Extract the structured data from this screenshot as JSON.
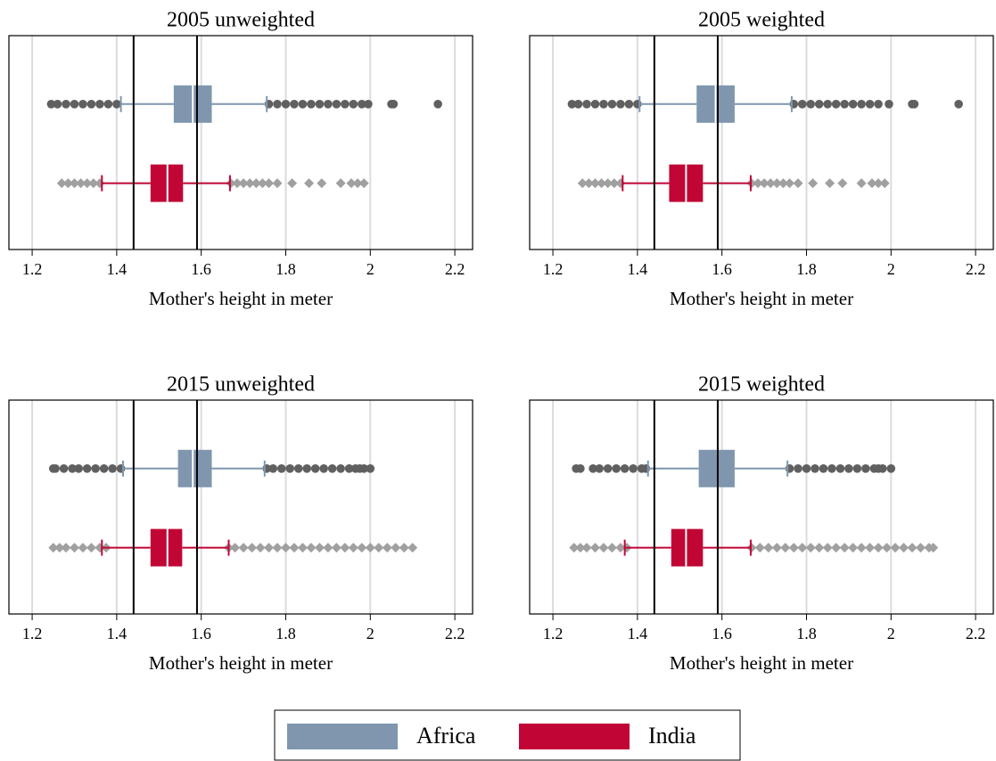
{
  "chart_data": [
    {
      "type": "box",
      "title": "2005 unweighted",
      "xlabel": "Mother's height in meter",
      "xlim": [
        1.145,
        2.242
      ],
      "xticks": [
        1.2,
        1.4,
        1.6,
        1.8,
        2,
        2.2
      ],
      "grid": true,
      "vlines": [
        1.44,
        1.59
      ],
      "series": [
        {
          "name": "Africa",
          "color": "#7f96ae",
          "outlier_color": "#606060",
          "outlier_marker": "circle",
          "whisker_low": 1.41,
          "q1": 1.535,
          "median": 1.58,
          "q3": 1.625,
          "whisker_high": 1.755,
          "outliers": [
            1.245,
            1.26,
            1.28,
            1.3,
            1.32,
            1.34,
            1.36,
            1.38,
            1.4,
            1.76,
            1.78,
            1.8,
            1.82,
            1.84,
            1.86,
            1.88,
            1.9,
            1.92,
            1.94,
            1.96,
            1.98,
            1.995,
            2.05,
            2.055,
            2.16
          ]
        },
        {
          "name": "India",
          "color": "#c10534",
          "outlier_color": "#a0a0a0",
          "outlier_marker": "diamond",
          "whisker_low": 1.365,
          "q1": 1.48,
          "median": 1.52,
          "q3": 1.557,
          "whisker_high": 1.668,
          "outliers": [
            1.27,
            1.285,
            1.3,
            1.315,
            1.33,
            1.345,
            1.36,
            1.67,
            1.685,
            1.7,
            1.715,
            1.73,
            1.745,
            1.76,
            1.78,
            1.815,
            1.855,
            1.885,
            1.93,
            1.955,
            1.97,
            1.985
          ]
        }
      ]
    },
    {
      "type": "box",
      "title": "2005 weighted",
      "xlabel": "Mother's height in meter",
      "xlim": [
        1.145,
        2.242
      ],
      "xticks": [
        1.2,
        1.4,
        1.6,
        1.8,
        2,
        2.2
      ],
      "grid": true,
      "vlines": [
        1.44,
        1.59
      ],
      "series": [
        {
          "name": "Africa",
          "color": "#7f96ae",
          "outlier_color": "#606060",
          "outlier_marker": "circle",
          "whisker_low": 1.405,
          "q1": 1.54,
          "median": 1.585,
          "q3": 1.63,
          "whisker_high": 1.765,
          "outliers": [
            1.245,
            1.26,
            1.28,
            1.3,
            1.32,
            1.34,
            1.36,
            1.38,
            1.4,
            1.77,
            1.79,
            1.81,
            1.83,
            1.85,
            1.87,
            1.89,
            1.91,
            1.93,
            1.95,
            1.97,
            1.995,
            2.05,
            2.055,
            2.16
          ]
        },
        {
          "name": "India",
          "color": "#c10534",
          "outlier_color": "#a0a0a0",
          "outlier_marker": "diamond",
          "whisker_low": 1.365,
          "q1": 1.475,
          "median": 1.515,
          "q3": 1.555,
          "whisker_high": 1.668,
          "outliers": [
            1.27,
            1.285,
            1.3,
            1.315,
            1.33,
            1.345,
            1.36,
            1.67,
            1.685,
            1.7,
            1.715,
            1.73,
            1.745,
            1.76,
            1.78,
            1.815,
            1.855,
            1.885,
            1.93,
            1.955,
            1.97,
            1.985
          ]
        }
      ]
    },
    {
      "type": "box",
      "title": "2015 unweighted",
      "xlabel": "Mother's height in meter",
      "xlim": [
        1.145,
        2.242
      ],
      "xticks": [
        1.2,
        1.4,
        1.6,
        1.8,
        2,
        2.2
      ],
      "grid": true,
      "vlines": [
        1.44,
        1.59
      ],
      "series": [
        {
          "name": "Africa",
          "color": "#7f96ae",
          "outlier_color": "#606060",
          "outlier_marker": "circle",
          "whisker_low": 1.415,
          "q1": 1.545,
          "median": 1.58,
          "q3": 1.625,
          "whisker_high": 1.75,
          "outliers": [
            1.25,
            1.255,
            1.275,
            1.295,
            1.31,
            1.33,
            1.35,
            1.37,
            1.39,
            1.41,
            1.755,
            1.77,
            1.79,
            1.81,
            1.83,
            1.85,
            1.87,
            1.89,
            1.91,
            1.93,
            1.95,
            1.965,
            1.975,
            1.985,
            2.0
          ]
        },
        {
          "name": "India",
          "color": "#c10534",
          "outlier_color": "#a0a0a0",
          "outlier_marker": "diamond",
          "whisker_low": 1.365,
          "q1": 1.48,
          "median": 1.52,
          "q3": 1.555,
          "whisker_high": 1.665,
          "outliers": [
            1.25,
            1.265,
            1.28,
            1.3,
            1.32,
            1.34,
            1.36,
            1.375,
            1.665,
            1.68,
            1.7,
            1.72,
            1.74,
            1.76,
            1.78,
            1.8,
            1.82,
            1.84,
            1.86,
            1.88,
            1.9,
            1.92,
            1.94,
            1.96,
            1.98,
            2.0,
            2.02,
            2.04,
            2.06,
            2.08,
            2.1
          ]
        }
      ]
    },
    {
      "type": "box",
      "title": "2015 weighted",
      "xlabel": "Mother's height in meter",
      "xlim": [
        1.145,
        2.242
      ],
      "xticks": [
        1.2,
        1.4,
        1.6,
        1.8,
        2,
        2.2
      ],
      "grid": true,
      "vlines": [
        1.44,
        1.59
      ],
      "series": [
        {
          "name": "Africa",
          "color": "#7f96ae",
          "outlier_color": "#606060",
          "outlier_marker": "circle",
          "whisker_low": 1.425,
          "q1": 1.545,
          "median": 1.59,
          "q3": 1.63,
          "whisker_high": 1.755,
          "outliers": [
            1.255,
            1.265,
            1.295,
            1.31,
            1.33,
            1.35,
            1.37,
            1.39,
            1.41,
            1.42,
            1.76,
            1.78,
            1.8,
            1.82,
            1.84,
            1.86,
            1.88,
            1.9,
            1.92,
            1.94,
            1.96,
            1.97,
            1.98,
            2.0
          ]
        },
        {
          "name": "India",
          "color": "#c10534",
          "outlier_color": "#a0a0a0",
          "outlier_marker": "diamond",
          "whisker_low": 1.37,
          "q1": 1.48,
          "median": 1.515,
          "q3": 1.555,
          "whisker_high": 1.668,
          "outliers": [
            1.25,
            1.265,
            1.28,
            1.3,
            1.32,
            1.34,
            1.36,
            1.375,
            1.67,
            1.69,
            1.71,
            1.73,
            1.75,
            1.77,
            1.79,
            1.81,
            1.83,
            1.85,
            1.87,
            1.89,
            1.91,
            1.93,
            1.95,
            1.97,
            1.99,
            2.01,
            2.03,
            2.05,
            2.07,
            2.09,
            2.1
          ]
        }
      ]
    }
  ]
}
